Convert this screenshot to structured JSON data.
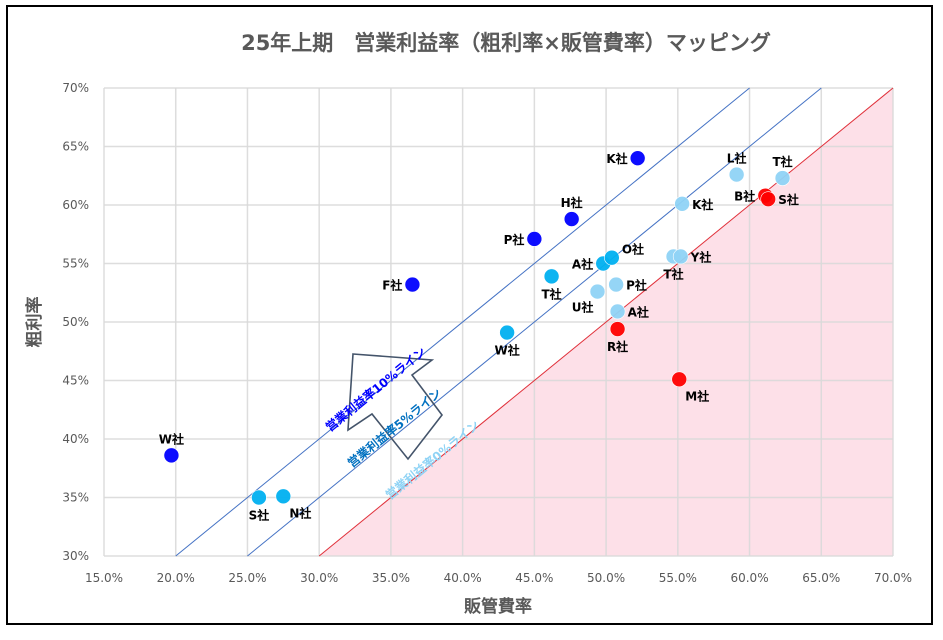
{
  "chart_data": {
    "type": "scatter",
    "title": "25年上期　営業利益率（粗利率×販管費率）マッピング",
    "xlabel": "販管費率",
    "ylabel": "粗利率",
    "xlim": [
      15,
      70
    ],
    "ylim": [
      30,
      70
    ],
    "x_ticks": [
      "15.0%",
      "20.0%",
      "25.0%",
      "30.0%",
      "35.0%",
      "40.0%",
      "45.0%",
      "50.0%",
      "55.0%",
      "60.0%",
      "65.0%",
      "70.0%"
    ],
    "y_ticks": [
      "30%",
      "35%",
      "40%",
      "45%",
      "50%",
      "55%",
      "60%",
      "65%",
      "70%"
    ],
    "grid": true,
    "legend": "none",
    "colors": {
      "dark_blue": "#0000ff",
      "mid_blue": "#00b0f0",
      "light_blue": "#8fd3f5",
      "red": "#ff0000",
      "loss_zone_fill": "#fde0e8",
      "line_10": "#4472c4",
      "line_5": "#4472c4",
      "line_0": "#e0303a"
    },
    "reference_lines": [
      {
        "name": "営業利益率10%ライン",
        "offset": 10,
        "label_color": "#0000ff"
      },
      {
        "name": "営業利益率5%ライン",
        "offset": 5,
        "label_color": "#0070c0"
      },
      {
        "name": "営業利益率0%ライン",
        "offset": 0,
        "label_color": "#8fd3f5"
      }
    ],
    "points": [
      {
        "label": "W社",
        "x": 19.7,
        "y": 38.6,
        "group": "dark_blue",
        "pos": "top"
      },
      {
        "label": "S社",
        "x": 25.8,
        "y": 35.0,
        "group": "mid_blue",
        "pos": "bottom"
      },
      {
        "label": "N社",
        "x": 27.5,
        "y": 35.1,
        "group": "mid_blue",
        "pos": "bottom-right"
      },
      {
        "label": "F社",
        "x": 36.5,
        "y": 53.2,
        "group": "dark_blue",
        "pos": "left"
      },
      {
        "label": "W社",
        "x": 43.1,
        "y": 49.1,
        "group": "mid_blue",
        "pos": "bottom"
      },
      {
        "label": "P社",
        "x": 45.0,
        "y": 57.1,
        "group": "dark_blue",
        "pos": "left"
      },
      {
        "label": "H社",
        "x": 47.6,
        "y": 58.8,
        "group": "dark_blue",
        "pos": "top"
      },
      {
        "label": "T社",
        "x": 46.2,
        "y": 53.9,
        "group": "mid_blue",
        "pos": "bottom"
      },
      {
        "label": "A社",
        "x": 49.8,
        "y": 55.0,
        "group": "mid_blue",
        "pos": "left"
      },
      {
        "label": "O社",
        "x": 50.4,
        "y": 55.5,
        "group": "mid_blue",
        "pos": "top-right"
      },
      {
        "label": "U社",
        "x": 49.4,
        "y": 52.6,
        "group": "light_blue",
        "pos": "bottom-left"
      },
      {
        "label": "P社",
        "x": 50.7,
        "y": 53.2,
        "group": "light_blue",
        "pos": "right"
      },
      {
        "label": "A社",
        "x": 50.8,
        "y": 50.9,
        "group": "light_blue",
        "pos": "right"
      },
      {
        "label": "R社",
        "x": 50.8,
        "y": 49.4,
        "group": "red",
        "pos": "bottom"
      },
      {
        "label": "K社",
        "x": 52.2,
        "y": 64.0,
        "group": "dark_blue",
        "pos": "left"
      },
      {
        "label": "K社",
        "x": 55.3,
        "y": 60.1,
        "group": "light_blue",
        "pos": "right"
      },
      {
        "label": "T社",
        "x": 54.7,
        "y": 55.6,
        "group": "light_blue",
        "pos": "bottom"
      },
      {
        "label": "Y社",
        "x": 55.2,
        "y": 55.6,
        "group": "light_blue",
        "pos": "right"
      },
      {
        "label": "M社",
        "x": 55.1,
        "y": 45.1,
        "group": "red",
        "pos": "bottom-right"
      },
      {
        "label": "L社",
        "x": 59.1,
        "y": 62.6,
        "group": "light_blue",
        "pos": "top"
      },
      {
        "label": "T社",
        "x": 62.3,
        "y": 62.3,
        "group": "light_blue",
        "pos": "top"
      },
      {
        "label": "B社",
        "x": 61.1,
        "y": 60.8,
        "group": "red",
        "pos": "left"
      },
      {
        "label": "S社",
        "x": 61.3,
        "y": 60.5,
        "group": "red",
        "pos": "right"
      }
    ],
    "annotations": [
      {
        "type": "block-arrow",
        "direction": "up-left",
        "meaning": "higher operating margin"
      }
    ]
  }
}
